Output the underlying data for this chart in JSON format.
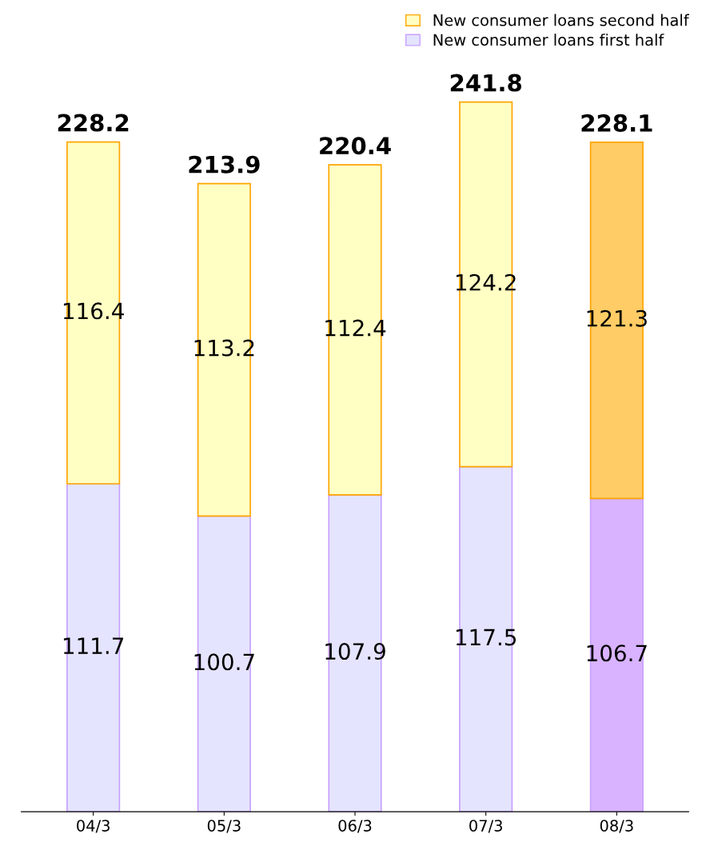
{
  "chart_data": {
    "type": "bar",
    "stacked": true,
    "categories": [
      "04/3",
      "05/3",
      "06/3",
      "07/3",
      "08/3"
    ],
    "series": [
      {
        "name": "New consumer loans first half",
        "color": "#e4e4ff",
        "colors": [
          "#e4e4ff",
          "#e4e4ff",
          "#e4e4ff",
          "#e4e4ff",
          "#d9b3ff"
        ],
        "values": [
          111.7,
          100.7,
          107.9,
          117.5,
          106.7
        ]
      },
      {
        "name": "New consumer loans second half",
        "color": "#ffffc4",
        "colors": [
          "#ffffc4",
          "#ffffc4",
          "#ffffc4",
          "#ffffc4",
          "#ffcc66"
        ],
        "values": [
          116.4,
          113.2,
          112.4,
          124.2,
          121.3
        ]
      }
    ],
    "data_labels": true,
    "totals": [
      "228.2",
      "213.9",
      "220.4",
      "241.8",
      "228.1"
    ],
    "legend": "top right"
  }
}
